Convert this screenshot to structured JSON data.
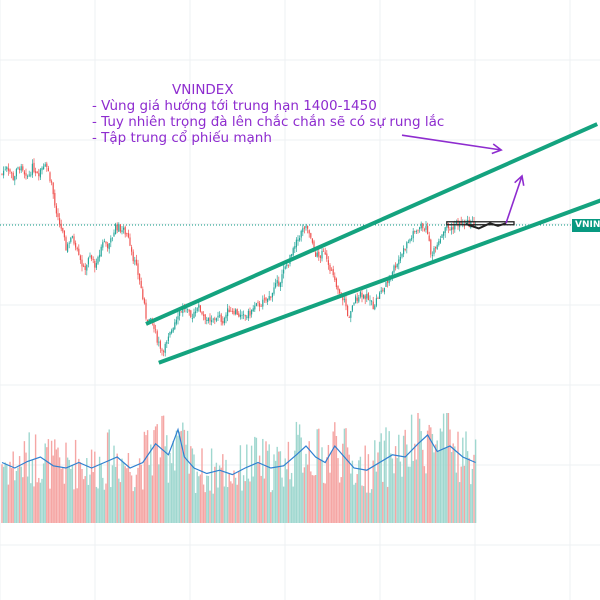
{
  "chart_data": {
    "type": "candlestick",
    "symbol": "VNINDEX",
    "price_range_note": "1400-1450",
    "grid": true,
    "annotation": {
      "title": "VNINDEX",
      "lines": [
        "- Vùng giá hướng tới trung hạn 1400-1450",
        "- Tuy nhiên trọng đà lên chắc chắn sẽ có sự rung lắc",
        "- Tập trung cổ phiếu mạnh"
      ]
    },
    "colors": {
      "up": "#26a69a",
      "down": "#ef5350",
      "volume_up": "#9fd7cf",
      "volume_down": "#f5a6a4",
      "volume_ma": "#2f80d1",
      "channel": "#14a37f",
      "annotation": "#8e2ccf",
      "price_line": "#089981"
    },
    "price_path": [
      {
        "t": 0,
        "p": 1395
      },
      {
        "t": 3,
        "p": 1420
      },
      {
        "t": 7,
        "p": 1385
      },
      {
        "t": 11,
        "p": 1415
      },
      {
        "t": 15,
        "p": 1380
      },
      {
        "t": 19,
        "p": 1412
      },
      {
        "t": 23,
        "p": 1400
      },
      {
        "t": 27,
        "p": 1430
      },
      {
        "t": 31,
        "p": 1370
      },
      {
        "t": 34,
        "p": 1280
      },
      {
        "t": 37,
        "p": 1250
      },
      {
        "t": 40,
        "p": 1195
      },
      {
        "t": 43,
        "p": 1225
      },
      {
        "t": 47,
        "p": 1200
      },
      {
        "t": 51,
        "p": 1135
      },
      {
        "t": 55,
        "p": 1170
      },
      {
        "t": 59,
        "p": 1145
      },
      {
        "t": 63,
        "p": 1215
      },
      {
        "t": 67,
        "p": 1200
      },
      {
        "t": 71,
        "p": 1255
      },
      {
        "t": 75,
        "p": 1245
      },
      {
        "t": 79,
        "p": 1230
      },
      {
        "t": 82,
        "p": 1170
      },
      {
        "t": 86,
        "p": 1110
      },
      {
        "t": 90,
        "p": 1010
      },
      {
        "t": 94,
        "p": 990
      },
      {
        "t": 97,
        "p": 950
      },
      {
        "t": 100,
        "p": 920
      },
      {
        "t": 103,
        "p": 935
      },
      {
        "t": 106,
        "p": 975
      },
      {
        "t": 110,
        "p": 1020
      },
      {
        "t": 114,
        "p": 1035
      },
      {
        "t": 118,
        "p": 1005
      },
      {
        "t": 122,
        "p": 1040
      },
      {
        "t": 126,
        "p": 1015
      },
      {
        "t": 130,
        "p": 990
      },
      {
        "t": 134,
        "p": 1010
      },
      {
        "t": 138,
        "p": 1000
      },
      {
        "t": 142,
        "p": 1030
      },
      {
        "t": 146,
        "p": 1025
      },
      {
        "t": 150,
        "p": 1005
      },
      {
        "t": 154,
        "p": 1015
      },
      {
        "t": 158,
        "p": 1035
      },
      {
        "t": 162,
        "p": 1045
      },
      {
        "t": 166,
        "p": 1055
      },
      {
        "t": 170,
        "p": 1085
      },
      {
        "t": 174,
        "p": 1110
      },
      {
        "t": 178,
        "p": 1150
      },
      {
        "t": 182,
        "p": 1185
      },
      {
        "t": 186,
        "p": 1230
      },
      {
        "t": 189,
        "p": 1250
      },
      {
        "t": 192,
        "p": 1235
      },
      {
        "t": 195,
        "p": 1185
      },
      {
        "t": 198,
        "p": 1170
      },
      {
        "t": 202,
        "p": 1185
      },
      {
        "t": 206,
        "p": 1130
      },
      {
        "t": 210,
        "p": 1075
      },
      {
        "t": 214,
        "p": 1055
      },
      {
        "t": 217,
        "p": 1000
      },
      {
        "t": 220,
        "p": 1050
      },
      {
        "t": 224,
        "p": 1075
      },
      {
        "t": 228,
        "p": 1060
      },
      {
        "t": 232,
        "p": 1040
      },
      {
        "t": 236,
        "p": 1070
      },
      {
        "t": 240,
        "p": 1095
      },
      {
        "t": 244,
        "p": 1135
      },
      {
        "t": 248,
        "p": 1165
      },
      {
        "t": 252,
        "p": 1200
      },
      {
        "t": 256,
        "p": 1225
      },
      {
        "t": 260,
        "p": 1250
      },
      {
        "t": 263,
        "p": 1255
      },
      {
        "t": 266,
        "p": 1240
      },
      {
        "t": 268,
        "p": 1175
      },
      {
        "t": 271,
        "p": 1205
      },
      {
        "t": 274,
        "p": 1225
      },
      {
        "t": 277,
        "p": 1255
      },
      {
        "t": 280,
        "p": 1245
      },
      {
        "t": 284,
        "p": 1262
      },
      {
        "t": 288,
        "p": 1258
      },
      {
        "t": 292,
        "p": 1262
      },
      {
        "t": 296,
        "p": 1260
      }
    ],
    "volume_ma_path": [
      {
        "t": 0,
        "v": 0.55
      },
      {
        "t": 8,
        "v": 0.5
      },
      {
        "t": 16,
        "v": 0.56
      },
      {
        "t": 24,
        "v": 0.6
      },
      {
        "t": 32,
        "v": 0.52
      },
      {
        "t": 40,
        "v": 0.5
      },
      {
        "t": 48,
        "v": 0.55
      },
      {
        "t": 56,
        "v": 0.5
      },
      {
        "t": 64,
        "v": 0.55
      },
      {
        "t": 72,
        "v": 0.6
      },
      {
        "t": 80,
        "v": 0.5
      },
      {
        "t": 88,
        "v": 0.55
      },
      {
        "t": 96,
        "v": 0.72
      },
      {
        "t": 104,
        "v": 0.62
      },
      {
        "t": 110,
        "v": 0.85
      },
      {
        "t": 114,
        "v": 0.6
      },
      {
        "t": 120,
        "v": 0.5
      },
      {
        "t": 128,
        "v": 0.45
      },
      {
        "t": 136,
        "v": 0.48
      },
      {
        "t": 144,
        "v": 0.44
      },
      {
        "t": 152,
        "v": 0.5
      },
      {
        "t": 160,
        "v": 0.55
      },
      {
        "t": 168,
        "v": 0.5
      },
      {
        "t": 176,
        "v": 0.52
      },
      {
        "t": 184,
        "v": 0.62
      },
      {
        "t": 190,
        "v": 0.7
      },
      {
        "t": 196,
        "v": 0.6
      },
      {
        "t": 202,
        "v": 0.55
      },
      {
        "t": 208,
        "v": 0.7
      },
      {
        "t": 214,
        "v": 0.6
      },
      {
        "t": 220,
        "v": 0.5
      },
      {
        "t": 228,
        "v": 0.48
      },
      {
        "t": 236,
        "v": 0.55
      },
      {
        "t": 244,
        "v": 0.62
      },
      {
        "t": 252,
        "v": 0.6
      },
      {
        "t": 260,
        "v": 0.72
      },
      {
        "t": 266,
        "v": 0.8
      },
      {
        "t": 272,
        "v": 0.65
      },
      {
        "t": 280,
        "v": 0.7
      },
      {
        "t": 288,
        "v": 0.6
      },
      {
        "t": 296,
        "v": 0.55
      }
    ],
    "channel": {
      "upper": [
        {
          "t": 90,
          "p": 990
        },
        {
          "t": 372,
          "p": 1530
        }
      ],
      "lower": [
        {
          "t": 98,
          "p": 885
        },
        {
          "t": 375,
          "p": 1325
        }
      ]
    },
    "projection": {
      "box": [
        {
          "t": 278,
          "p": 1258
        },
        {
          "t": 320,
          "p": 1266
        }
      ],
      "zigzag": [
        {
          "t": 290,
          "p": 1260
        },
        {
          "t": 298,
          "p": 1248
        },
        {
          "t": 305,
          "p": 1262
        },
        {
          "t": 310,
          "p": 1255
        },
        {
          "t": 315,
          "p": 1262
        }
      ],
      "up_arrow": [
        {
          "t": 315,
          "p": 1262
        },
        {
          "t": 325,
          "p": 1390
        }
      ],
      "pointer_arrow": [
        {
          "t": 250,
          "p": 1500
        },
        {
          "t": 312,
          "p": 1460
        }
      ]
    }
  }
}
